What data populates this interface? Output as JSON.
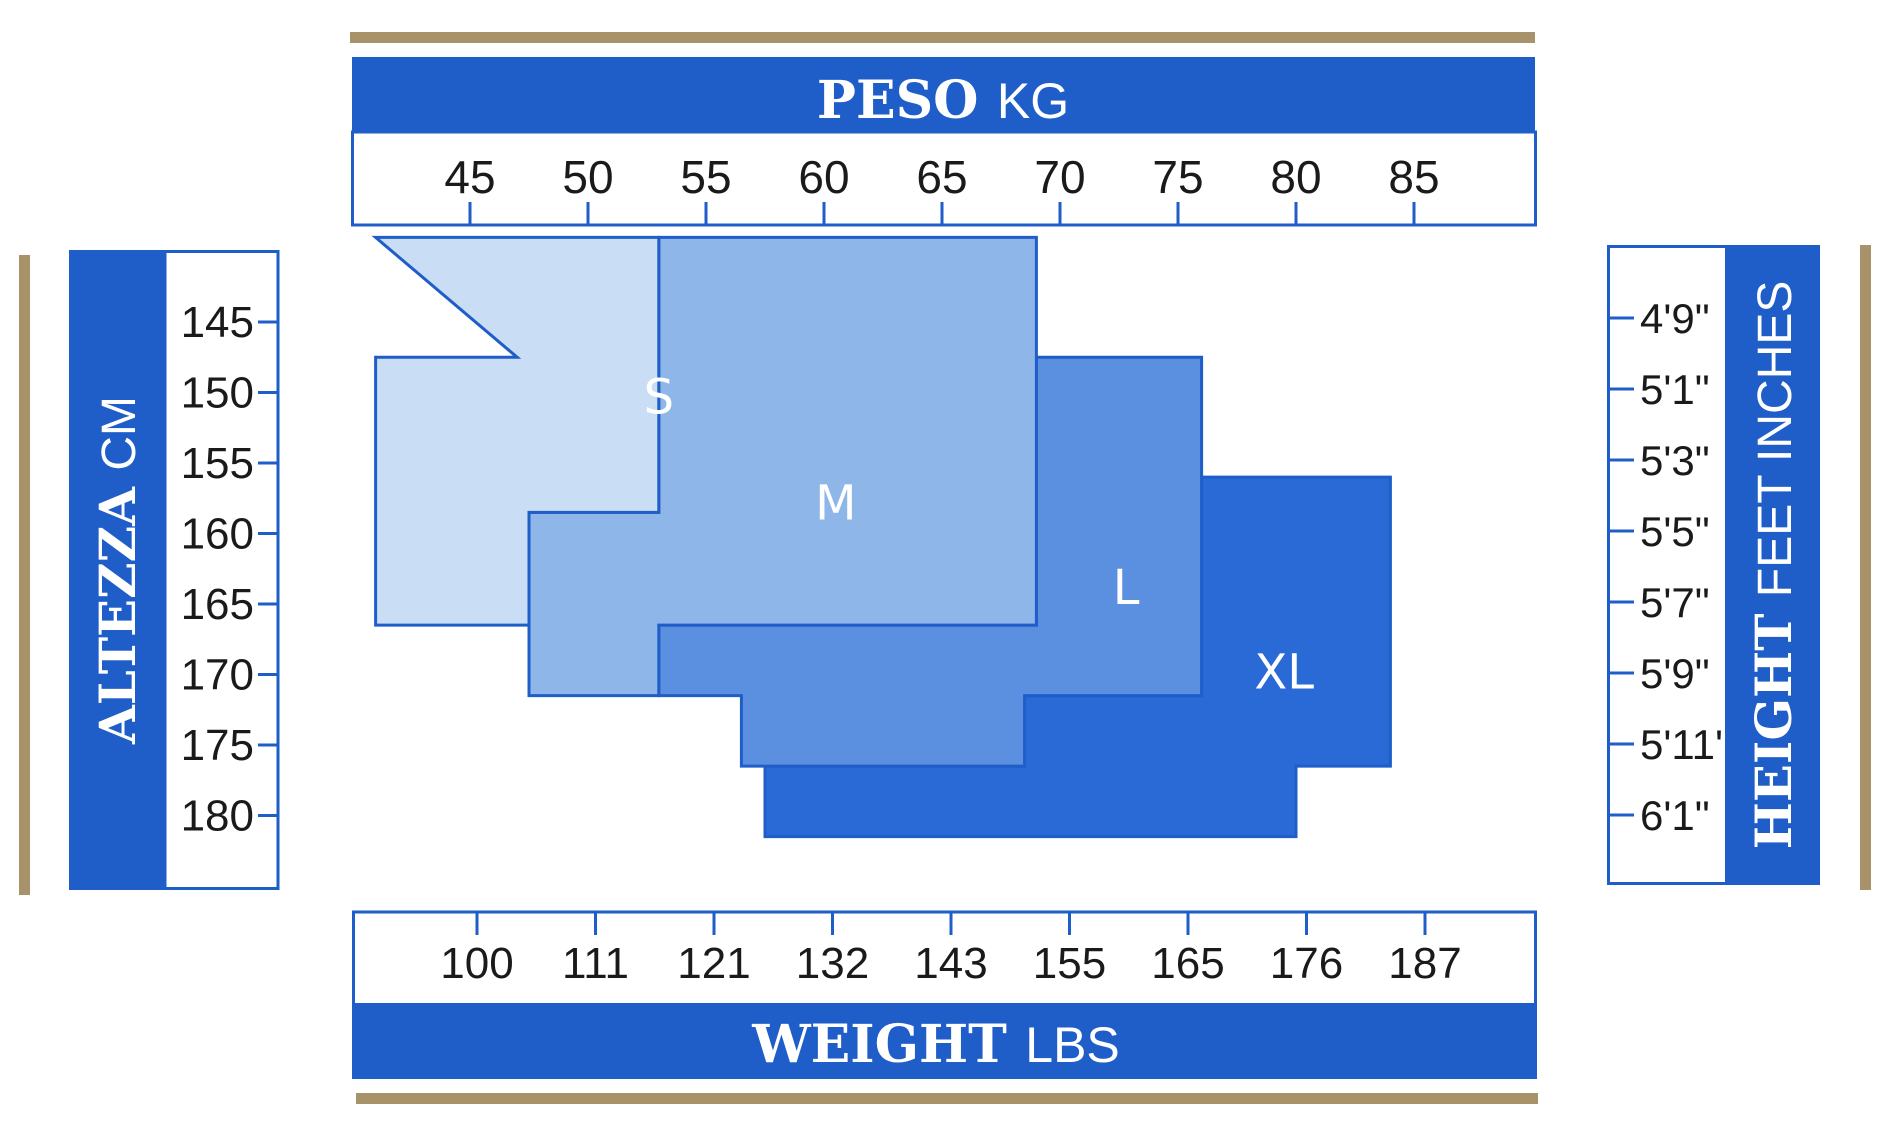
{
  "colors": {
    "blue": "#1f5ec9",
    "gold": "#a8926a",
    "size_S": "#c9def4",
    "size_M": "#8fb6e8",
    "size_L": "#5b8fdf",
    "size_XL": "#2a6ad6",
    "label_white": "#ffffff"
  },
  "chart_data": {
    "type": "size-chart",
    "top_axis": {
      "title_bold": "PESO",
      "title_unit": "KG",
      "ticks": [
        "45",
        "50",
        "55",
        "60",
        "65",
        "70",
        "75",
        "80",
        "85"
      ],
      "values": [
        45,
        50,
        55,
        60,
        65,
        70,
        75,
        80,
        85
      ]
    },
    "bottom_axis": {
      "title_bold": "WEIGHT",
      "title_unit": "LBS",
      "ticks": [
        "100",
        "111",
        "121",
        "132",
        "143",
        "155",
        "165",
        "176",
        "187"
      ],
      "values": [
        100,
        111,
        121,
        132,
        143,
        155,
        165,
        176,
        187
      ]
    },
    "left_axis": {
      "title_bold": "ALTEZZA",
      "title_unit": "CM",
      "ticks": [
        "145",
        "150",
        "155",
        "160",
        "165",
        "170",
        "175",
        "180"
      ],
      "values": [
        145,
        150,
        155,
        160,
        165,
        170,
        175,
        180
      ]
    },
    "right_axis": {
      "title_bold": "HEIGHT",
      "title_unit": "FEET INCHES",
      "ticks": [
        "4'9\"",
        "5'1\"",
        "5'3\"",
        "5'5\"",
        "5'7\"",
        "5'9\"",
        "5'11'",
        "6'1\""
      ]
    },
    "sizes": [
      {
        "label": "S",
        "region": [
          [
            41,
            139
          ],
          [
            53,
            139
          ],
          [
            53,
            158.5
          ],
          [
            47.5,
            158.5
          ],
          [
            47.5,
            166.5
          ],
          [
            41,
            166.5
          ],
          [
            41,
            147.5
          ],
          [
            47,
            147.5
          ]
        ],
        "label_at": [
          53,
          151.5
        ]
      },
      {
        "label": "M",
        "region": [
          [
            53,
            139
          ],
          [
            69,
            139
          ],
          [
            69,
            166.5
          ],
          [
            53,
            166.5
          ],
          [
            53,
            171.5
          ],
          [
            47.5,
            171.5
          ],
          [
            47.5,
            158.5
          ],
          [
            53,
            158.5
          ]
        ],
        "label_at": [
          60.5,
          159
        ]
      },
      {
        "label": "L",
        "region": [
          [
            69,
            147.5
          ],
          [
            76,
            147.5
          ],
          [
            76,
            171.5
          ],
          [
            68.5,
            171.5
          ],
          [
            68.5,
            176.5
          ],
          [
            56.5,
            176.5
          ],
          [
            56.5,
            171.5
          ],
          [
            53,
            171.5
          ],
          [
            53,
            166.5
          ],
          [
            69,
            166.5
          ]
        ],
        "label_at": [
          72.8,
          165
        ]
      },
      {
        "label": "XL",
        "region": [
          [
            76,
            156
          ],
          [
            84,
            156
          ],
          [
            84,
            176.5
          ],
          [
            80,
            176.5
          ],
          [
            80,
            181.5
          ],
          [
            57.5,
            181.5
          ],
          [
            57.5,
            176.5
          ],
          [
            68.5,
            176.5
          ],
          [
            68.5,
            171.5
          ],
          [
            76,
            171.5
          ]
        ],
        "label_at": [
          79.5,
          171
        ]
      }
    ],
    "title": "",
    "grid": false,
    "legend": "none"
  }
}
